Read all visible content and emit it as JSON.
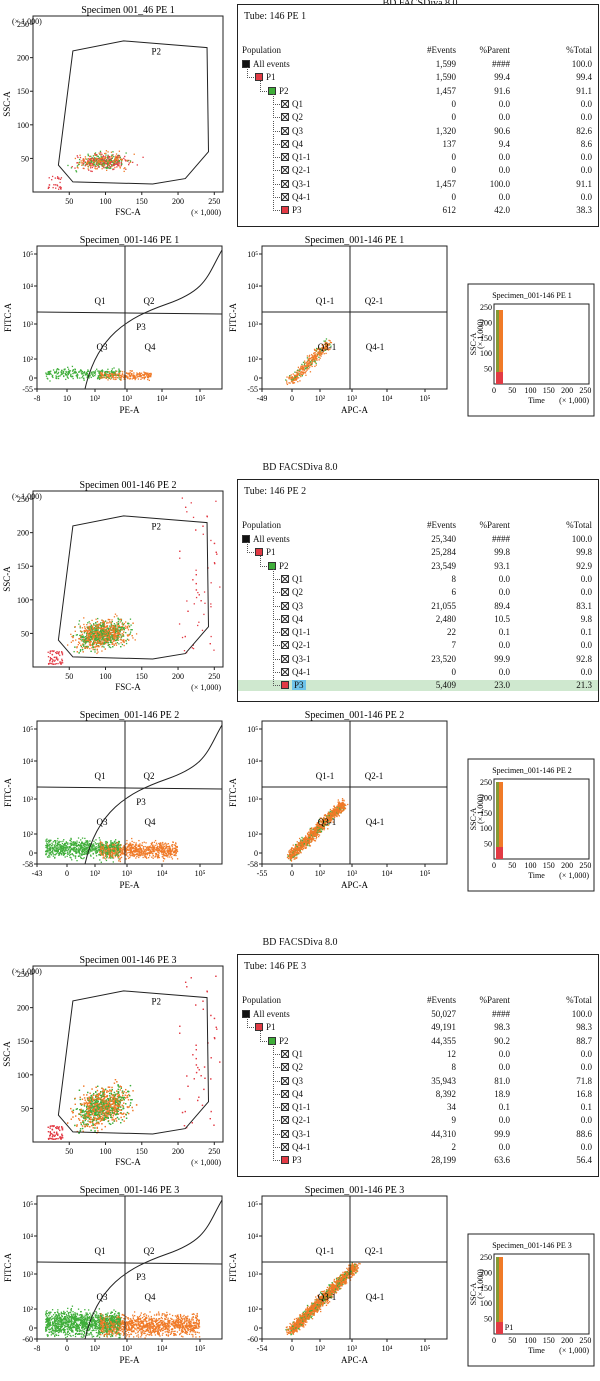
{
  "header": "BD FACSDiva 8.0",
  "sections": [
    {
      "tube": "Tube: 146 PE 1",
      "scatter_title": "Specimen 001_46 PE 1",
      "quad_title": "Specimen_001-146 PE 1",
      "apc_title": "Specimen_001-146 PE 1",
      "time_title": "Specimen_001-146 PE 1",
      "pe_ticks": [
        "-8",
        "10",
        "10²",
        "10³",
        "10⁴",
        "10⁵"
      ],
      "apc_ticks": [
        "-49",
        "0",
        "10²",
        "10³",
        "10⁴",
        "10⁵"
      ],
      "fitc_ticks": [
        "10⁵",
        "10⁴",
        "10³",
        "10²",
        "0",
        "-55"
      ],
      "fitc2_ticks": [
        "10⁵",
        "10⁴",
        "10³",
        "10²",
        "0",
        "-55"
      ],
      "density": 0.12,
      "highlight_p3": false,
      "rows": [
        {
          "name": "All events",
          "events": "1,599",
          "parent": "####",
          "total": "100.0"
        },
        {
          "name": "P1",
          "events": "1,590",
          "parent": "99.4",
          "total": "99.4"
        },
        {
          "name": "P2",
          "events": "1,457",
          "parent": "91.6",
          "total": "91.1"
        },
        {
          "name": "Q1",
          "events": "0",
          "parent": "0.0",
          "total": "0.0"
        },
        {
          "name": "Q2",
          "events": "0",
          "parent": "0.0",
          "total": "0.0"
        },
        {
          "name": "Q3",
          "events": "1,320",
          "parent": "90.6",
          "total": "82.6"
        },
        {
          "name": "Q4",
          "events": "137",
          "parent": "9.4",
          "total": "8.6"
        },
        {
          "name": "Q1-1",
          "events": "0",
          "parent": "0.0",
          "total": "0.0"
        },
        {
          "name": "Q2-1",
          "events": "0",
          "parent": "0.0",
          "total": "0.0"
        },
        {
          "name": "Q3-1",
          "events": "1,457",
          "parent": "100.0",
          "total": "91.1"
        },
        {
          "name": "Q4-1",
          "events": "0",
          "parent": "0.0",
          "total": "0.0"
        },
        {
          "name": "P3",
          "events": "612",
          "parent": "42.0",
          "total": "38.3"
        }
      ]
    },
    {
      "tube": "Tube: 146 PE 2",
      "scatter_title": "Specimen 001-146 PE 2",
      "quad_title": "Specimen_001-146 PE 2",
      "apc_title": "Specimen_001-146 PE 2",
      "time_title": "Specimen_001-146 PE 2",
      "pe_ticks": [
        "-43",
        "0",
        "10²",
        "10³",
        "10⁴",
        "10⁵"
      ],
      "apc_ticks": [
        "-55",
        "0",
        "10²",
        "10³",
        "10⁴",
        "10⁵"
      ],
      "fitc_ticks": [
        "10⁵",
        "10⁴",
        "10³",
        "10²",
        "0",
        "-58"
      ],
      "fitc2_ticks": [
        "10⁵",
        "10⁴",
        "10³",
        "10²",
        "0",
        "-58"
      ],
      "density": 0.6,
      "highlight_p3": true,
      "rows": [
        {
          "name": "All events",
          "events": "25,340",
          "parent": "####",
          "total": "100.0"
        },
        {
          "name": "P1",
          "events": "25,284",
          "parent": "99.8",
          "total": "99.8"
        },
        {
          "name": "P2",
          "events": "23,549",
          "parent": "93.1",
          "total": "92.9"
        },
        {
          "name": "Q1",
          "events": "8",
          "parent": "0.0",
          "total": "0.0"
        },
        {
          "name": "Q2",
          "events": "6",
          "parent": "0.0",
          "total": "0.0"
        },
        {
          "name": "Q3",
          "events": "21,055",
          "parent": "89.4",
          "total": "83.1"
        },
        {
          "name": "Q4",
          "events": "2,480",
          "parent": "10.5",
          "total": "9.8"
        },
        {
          "name": "Q1-1",
          "events": "22",
          "parent": "0.1",
          "total": "0.1"
        },
        {
          "name": "Q2-1",
          "events": "7",
          "parent": "0.0",
          "total": "0.0"
        },
        {
          "name": "Q3-1",
          "events": "23,520",
          "parent": "99.9",
          "total": "92.8"
        },
        {
          "name": "Q4-1",
          "events": "0",
          "parent": "0.0",
          "total": "0.0"
        },
        {
          "name": "P3",
          "events": "5,409",
          "parent": "23.0",
          "total": "21.3"
        }
      ]
    },
    {
      "tube": "Tube: 146 PE 3",
      "scatter_title": "Specimen 001-146 PE 3",
      "quad_title": "Specimen_001-146 PE 3",
      "apc_title": "Specimen_001-146 PE 3",
      "time_title": "Specimen_001-146 PE 3",
      "pe_ticks": [
        "-8",
        "0",
        "10²",
        "10³",
        "10⁴",
        "10⁵"
      ],
      "apc_ticks": [
        "-54",
        "0",
        "10²",
        "10³",
        "10⁴",
        "10⁵"
      ],
      "fitc_ticks": [
        "10⁵",
        "10⁴",
        "10³",
        "10²",
        "0",
        "-60"
      ],
      "fitc2_ticks": [
        "10⁵",
        "10⁴",
        "10³",
        "10²",
        "0",
        "-60"
      ],
      "density": 1.0,
      "highlight_p3": false,
      "rows": [
        {
          "name": "All events",
          "events": "50,027",
          "parent": "####",
          "total": "100.0"
        },
        {
          "name": "P1",
          "events": "49,191",
          "parent": "98.3",
          "total": "98.3"
        },
        {
          "name": "P2",
          "events": "44,355",
          "parent": "90.2",
          "total": "88.7"
        },
        {
          "name": "Q1",
          "events": "12",
          "parent": "0.0",
          "total": "0.0"
        },
        {
          "name": "Q2",
          "events": "8",
          "parent": "0.0",
          "total": "0.0"
        },
        {
          "name": "Q3",
          "events": "35,943",
          "parent": "81.0",
          "total": "71.8"
        },
        {
          "name": "Q4",
          "events": "8,392",
          "parent": "18.9",
          "total": "16.8"
        },
        {
          "name": "Q1-1",
          "events": "34",
          "parent": "0.1",
          "total": "0.1"
        },
        {
          "name": "Q2-1",
          "events": "9",
          "parent": "0.0",
          "total": "0.0"
        },
        {
          "name": "Q3-1",
          "events": "44,310",
          "parent": "99.9",
          "total": "88.6"
        },
        {
          "name": "Q4-1",
          "events": "2",
          "parent": "0.0",
          "total": "0.0"
        },
        {
          "name": "P3",
          "events": "28,199",
          "parent": "63.6",
          "total": "56.4"
        }
      ]
    }
  ],
  "common": {
    "col_population": "Population",
    "col_events": "#Events",
    "col_parent": "%Parent",
    "col_total": "%Total",
    "ssc_label": "SSC-A",
    "fsc_label": "FSC-A",
    "fitc_label": "FITC-A",
    "pe_label": "PE-A",
    "apc_label": "APC-A",
    "time_label": "Time",
    "scale_note": "(× 1,000)",
    "gate_p1": "P1",
    "gate_p2": "P2",
    "gate_p3": "P3",
    "q1": "Q1",
    "q2": "Q2",
    "q3": "Q3",
    "q4": "Q4",
    "q11": "Q1-1",
    "q21": "Q2-1",
    "q31": "Q3-1",
    "q41": "Q4-1",
    "lin_ticks": [
      "50",
      "100",
      "150",
      "200",
      "250"
    ],
    "time_ticks": [
      "0",
      "50",
      "100",
      "150",
      "200",
      "250"
    ],
    "colors": {
      "orange": "#f07a28",
      "green": "#3fae3a",
      "red": "#e23a44",
      "black": "#111111",
      "blue": "#6fc3ea"
    }
  },
  "chart_data": [
    {
      "type": "scatter",
      "title": "Specimen 001_46 PE 1",
      "xlabel": "FSC-A",
      "ylabel": "SSC-A",
      "xlim": [
        0,
        262
      ],
      "ylim": [
        0,
        262
      ]
    },
    {
      "type": "scatter",
      "title": "Specimen_001-146 PE 1",
      "xlabel": "PE-A",
      "ylabel": "FITC-A"
    },
    {
      "type": "scatter",
      "title": "Specimen_001-146 PE 1",
      "xlabel": "APC-A",
      "ylabel": "FITC-A"
    },
    {
      "type": "scatter",
      "title": "Specimen_001-146 PE 1",
      "xlabel": "Time",
      "ylabel": "SSC-A"
    },
    {
      "type": "table",
      "rows_ref": "sections"
    }
  ]
}
